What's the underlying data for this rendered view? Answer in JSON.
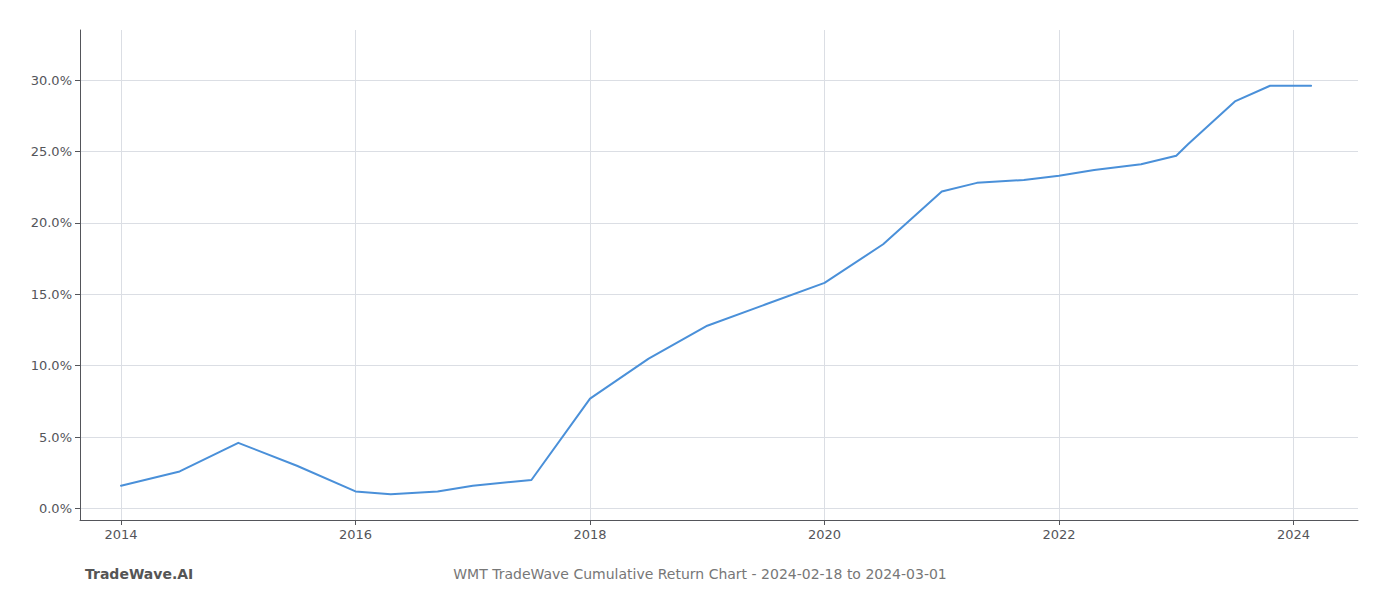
{
  "chart_data": {
    "type": "line",
    "title": "WMT TradeWave Cumulative Return Chart - 2024-02-18 to 2024-03-01",
    "annotations": [
      "TradeWave.AI"
    ],
    "x": [
      2014.0,
      2014.5,
      2015.0,
      2015.5,
      2016.0,
      2016.3,
      2016.7,
      2017.0,
      2017.5,
      2018.0,
      2018.5,
      2019.0,
      2019.5,
      2020.0,
      2020.5,
      2021.0,
      2021.3,
      2021.7,
      2022.0,
      2022.3,
      2022.7,
      2023.0,
      2023.1,
      2023.5,
      2023.8,
      2024.0,
      2024.15
    ],
    "values": [
      0.016,
      0.026,
      0.046,
      0.03,
      0.012,
      0.01,
      0.012,
      0.016,
      0.02,
      0.077,
      0.105,
      0.128,
      0.143,
      0.158,
      0.185,
      0.222,
      0.228,
      0.23,
      0.233,
      0.237,
      0.241,
      0.247,
      0.255,
      0.285,
      0.296,
      0.296,
      0.296
    ],
    "color": "#4a90d9",
    "xlim": [
      2013.65,
      2024.55
    ],
    "ylim": [
      -0.008,
      0.335
    ],
    "xticks": [
      2014,
      2016,
      2018,
      2020,
      2022,
      2024
    ],
    "yticks": [
      {
        "value": 0.0,
        "label": "0.0%"
      },
      {
        "value": 0.05,
        "label": "5.0%"
      },
      {
        "value": 0.1,
        "label": "10.0%"
      },
      {
        "value": 0.15,
        "label": "15.0%"
      },
      {
        "value": 0.2,
        "label": "20.0%"
      },
      {
        "value": 0.25,
        "label": "25.0%"
      },
      {
        "value": 0.3,
        "label": "30.0%"
      }
    ],
    "grid": true
  }
}
